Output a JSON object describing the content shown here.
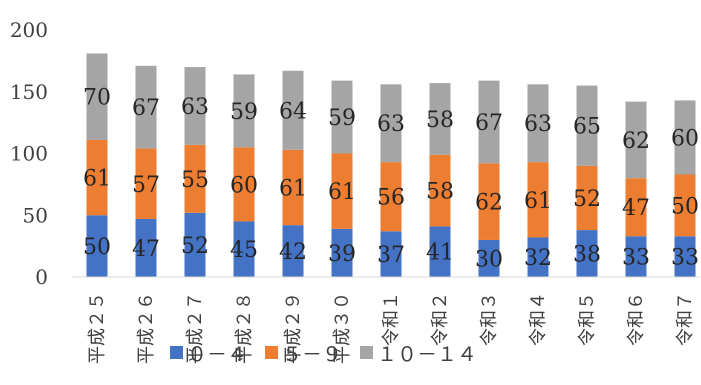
{
  "chart_data": {
    "type": "bar",
    "stacked": true,
    "title": "",
    "xlabel": "",
    "ylabel": "",
    "ylim": [
      0,
      200
    ],
    "yticks": [
      0,
      50,
      100,
      150,
      200
    ],
    "grid": false,
    "legend_position": "bottom",
    "categories": [
      "平成２５",
      "平成２６",
      "平成２７",
      "平成２８",
      "平成２９",
      "平成３０",
      "令和１",
      "令和２",
      "令和３",
      "令和４",
      "令和５",
      "令和６",
      "令和７"
    ],
    "series": [
      {
        "name": "０－４",
        "color": "#4472c4",
        "values": [
          50,
          47,
          52,
          45,
          42,
          39,
          37,
          41,
          30,
          32,
          38,
          33,
          33
        ]
      },
      {
        "name": "５－９",
        "color": "#ed7d31",
        "values": [
          61,
          57,
          55,
          60,
          61,
          61,
          56,
          58,
          62,
          61,
          52,
          47,
          50
        ]
      },
      {
        "name": "１０－１４",
        "color": "#a5a5a5",
        "values": [
          70,
          67,
          63,
          59,
          64,
          59,
          63,
          58,
          67,
          63,
          65,
          62,
          60
        ]
      }
    ]
  }
}
